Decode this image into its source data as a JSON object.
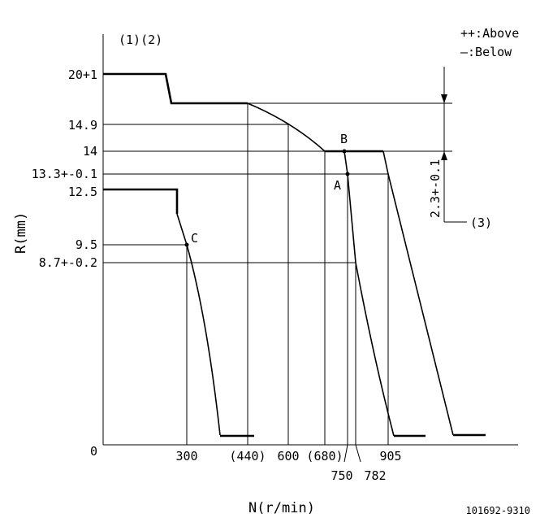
{
  "legend": {
    "above": "++:Above",
    "below": "—:Below"
  },
  "notes": {
    "refs_12": "(1)(2)",
    "ref_3": "(3)",
    "dim_23": "2.3+-0.1"
  },
  "axes": {
    "y_label": "R(mm)",
    "x_label": "N(r/min)",
    "y_ticks": [
      "20+1",
      "14.9",
      "14",
      "13.3+-0.1",
      "12.5",
      "9.5",
      "8.7+-0.2",
      "0"
    ],
    "x_ticks": [
      "300",
      "(440)",
      "600",
      "(680)",
      "750",
      "782",
      "905"
    ]
  },
  "points": {
    "A": "A",
    "B": "B",
    "C": "C"
  },
  "figure_id": "101692-9310"
}
